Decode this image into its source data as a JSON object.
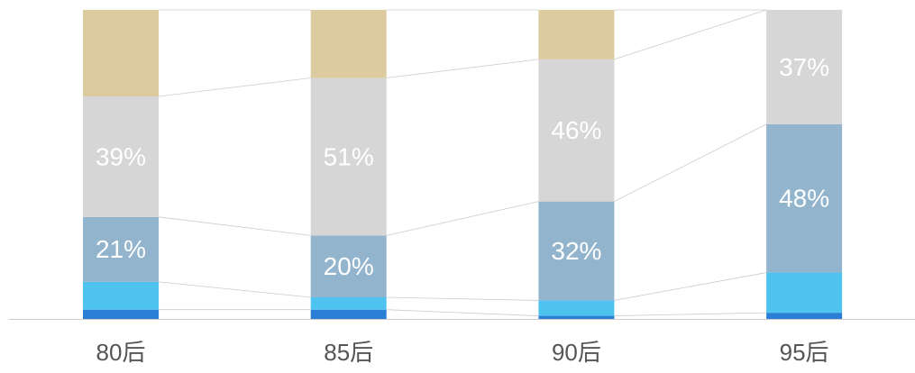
{
  "chart_data": {
    "type": "stacked_bar",
    "categories": [
      "80后",
      "85后",
      "90后",
      "95后"
    ],
    "ylim": [
      0,
      100
    ],
    "series": [
      {
        "color": "#2a7fd4",
        "values": [
          3,
          3,
          1,
          2
        ]
      },
      {
        "color": "#4fc3f0",
        "values": [
          9,
          4,
          5,
          13
        ]
      },
      {
        "color": "#92b4cc",
        "values": [
          21,
          20,
          32,
          48
        ],
        "value_labels": [
          "21%",
          "20%",
          "32%",
          "48%"
        ]
      },
      {
        "color": "#d6d6d6",
        "values": [
          39,
          51,
          46,
          37
        ],
        "value_labels": [
          "39%",
          "51%",
          "46%",
          "37%"
        ]
      },
      {
        "color": "#dccb9e",
        "values": [
          28,
          22,
          16,
          0
        ]
      }
    ]
  }
}
